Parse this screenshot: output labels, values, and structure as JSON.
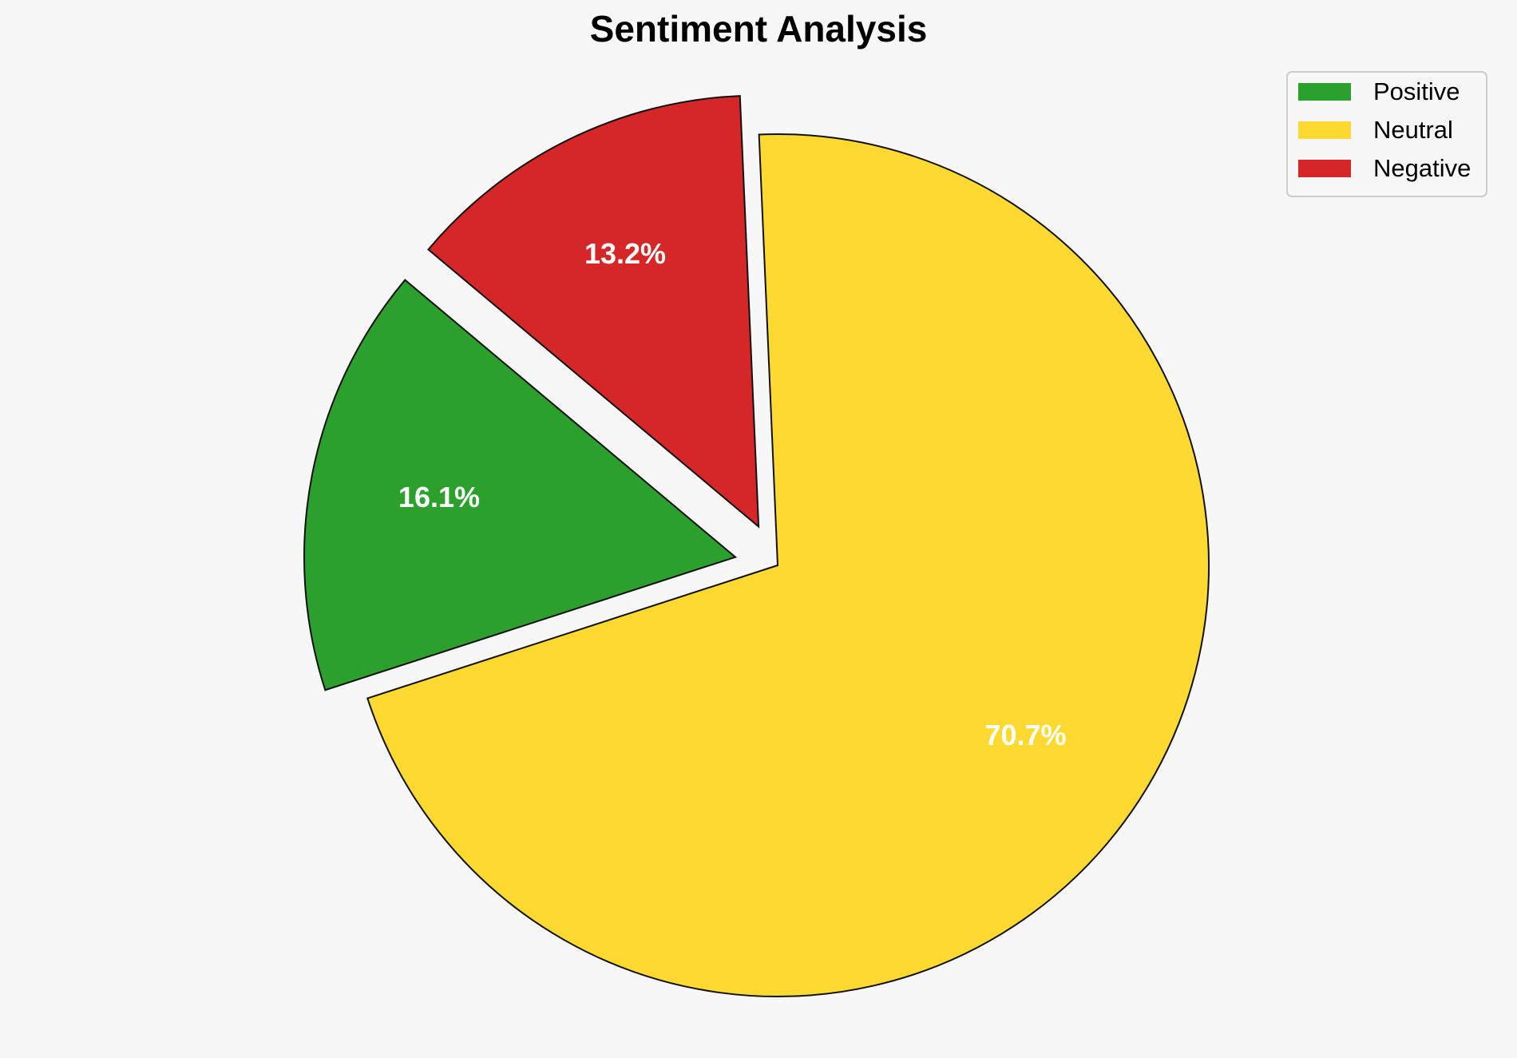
{
  "chart_data": {
    "type": "pie",
    "title": "Sentiment Analysis",
    "labels": [
      "Positive",
      "Neutral",
      "Negative"
    ],
    "values": [
      16.1,
      70.7,
      13.2
    ],
    "value_labels": [
      "16.1%",
      "70.7%",
      "13.2%"
    ],
    "colors": [
      "#2ca02c",
      "#fdd931",
      "#d62728"
    ],
    "legend": "upper right"
  }
}
